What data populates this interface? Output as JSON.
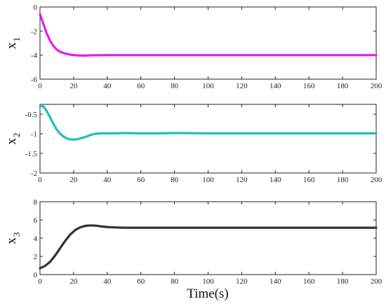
{
  "chart_data": [
    {
      "type": "line",
      "ylabel": "x",
      "ylabel_sub": "1",
      "xlim": [
        0,
        200
      ],
      "ylim": [
        -6,
        0
      ],
      "x_ticks": [
        "0",
        "20",
        "40",
        "60",
        "80",
        "100",
        "120",
        "140",
        "160",
        "180",
        "200"
      ],
      "y_ticks": [
        "-6",
        "-4",
        "-2",
        "0"
      ],
      "series": [
        {
          "color": "#e61ee6",
          "x": [
            0,
            2,
            4,
            6,
            8,
            10,
            12,
            15,
            18,
            22,
            26,
            30,
            40,
            60,
            100,
            150,
            200
          ],
          "y": [
            -0.6,
            -1.4,
            -2.2,
            -2.8,
            -3.25,
            -3.55,
            -3.72,
            -3.88,
            -3.96,
            -4.02,
            -4.04,
            -4.02,
            -4.0,
            -4.0,
            -4.0,
            -4.0,
            -4.0
          ]
        }
      ]
    },
    {
      "type": "line",
      "ylabel": "x",
      "ylabel_sub": "2",
      "xlim": [
        0,
        200
      ],
      "ylim": [
        -2,
        -0.25
      ],
      "x_ticks": [
        "0",
        "20",
        "40",
        "60",
        "80",
        "100",
        "120",
        "140",
        "160",
        "180",
        "200"
      ],
      "y_ticks": [
        "-2",
        "-1.5",
        "-1",
        "-0.5"
      ],
      "series": [
        {
          "color": "#1ebebe",
          "x": [
            0,
            2,
            4,
            6,
            8,
            10,
            12,
            14,
            16,
            18,
            20,
            22,
            24,
            27,
            30,
            33,
            36,
            40,
            45,
            50,
            60,
            70,
            80,
            100,
            120,
            140,
            160,
            180,
            200
          ],
          "y": [
            -0.3,
            -0.3,
            -0.42,
            -0.58,
            -0.75,
            -0.9,
            -1.0,
            -1.07,
            -1.12,
            -1.14,
            -1.15,
            -1.14,
            -1.12,
            -1.08,
            -1.03,
            -1.0,
            -0.99,
            -0.99,
            -0.99,
            -0.98,
            -0.99,
            -0.99,
            -0.98,
            -0.99,
            -0.99,
            -0.99,
            -0.99,
            -0.99,
            -0.99
          ]
        }
      ]
    },
    {
      "type": "line",
      "ylabel": "x",
      "ylabel_sub": "3",
      "xlim": [
        0,
        200
      ],
      "ylim": [
        0,
        8
      ],
      "x_ticks": [
        "0",
        "20",
        "40",
        "60",
        "80",
        "100",
        "120",
        "140",
        "160",
        "180",
        "200"
      ],
      "y_ticks": [
        "0",
        "2",
        "4",
        "6",
        "8"
      ],
      "series": [
        {
          "color": "#333333",
          "x": [
            0,
            3,
            6,
            9,
            12,
            15,
            18,
            21,
            24,
            27,
            30,
            33,
            36,
            40,
            45,
            50,
            60,
            80,
            100,
            150,
            200
          ],
          "y": [
            0.7,
            0.95,
            1.4,
            2.1,
            2.9,
            3.7,
            4.4,
            4.9,
            5.2,
            5.35,
            5.4,
            5.38,
            5.3,
            5.22,
            5.18,
            5.15,
            5.15,
            5.15,
            5.15,
            5.15,
            5.15
          ]
        }
      ]
    }
  ],
  "xlabel": "Time(s)"
}
